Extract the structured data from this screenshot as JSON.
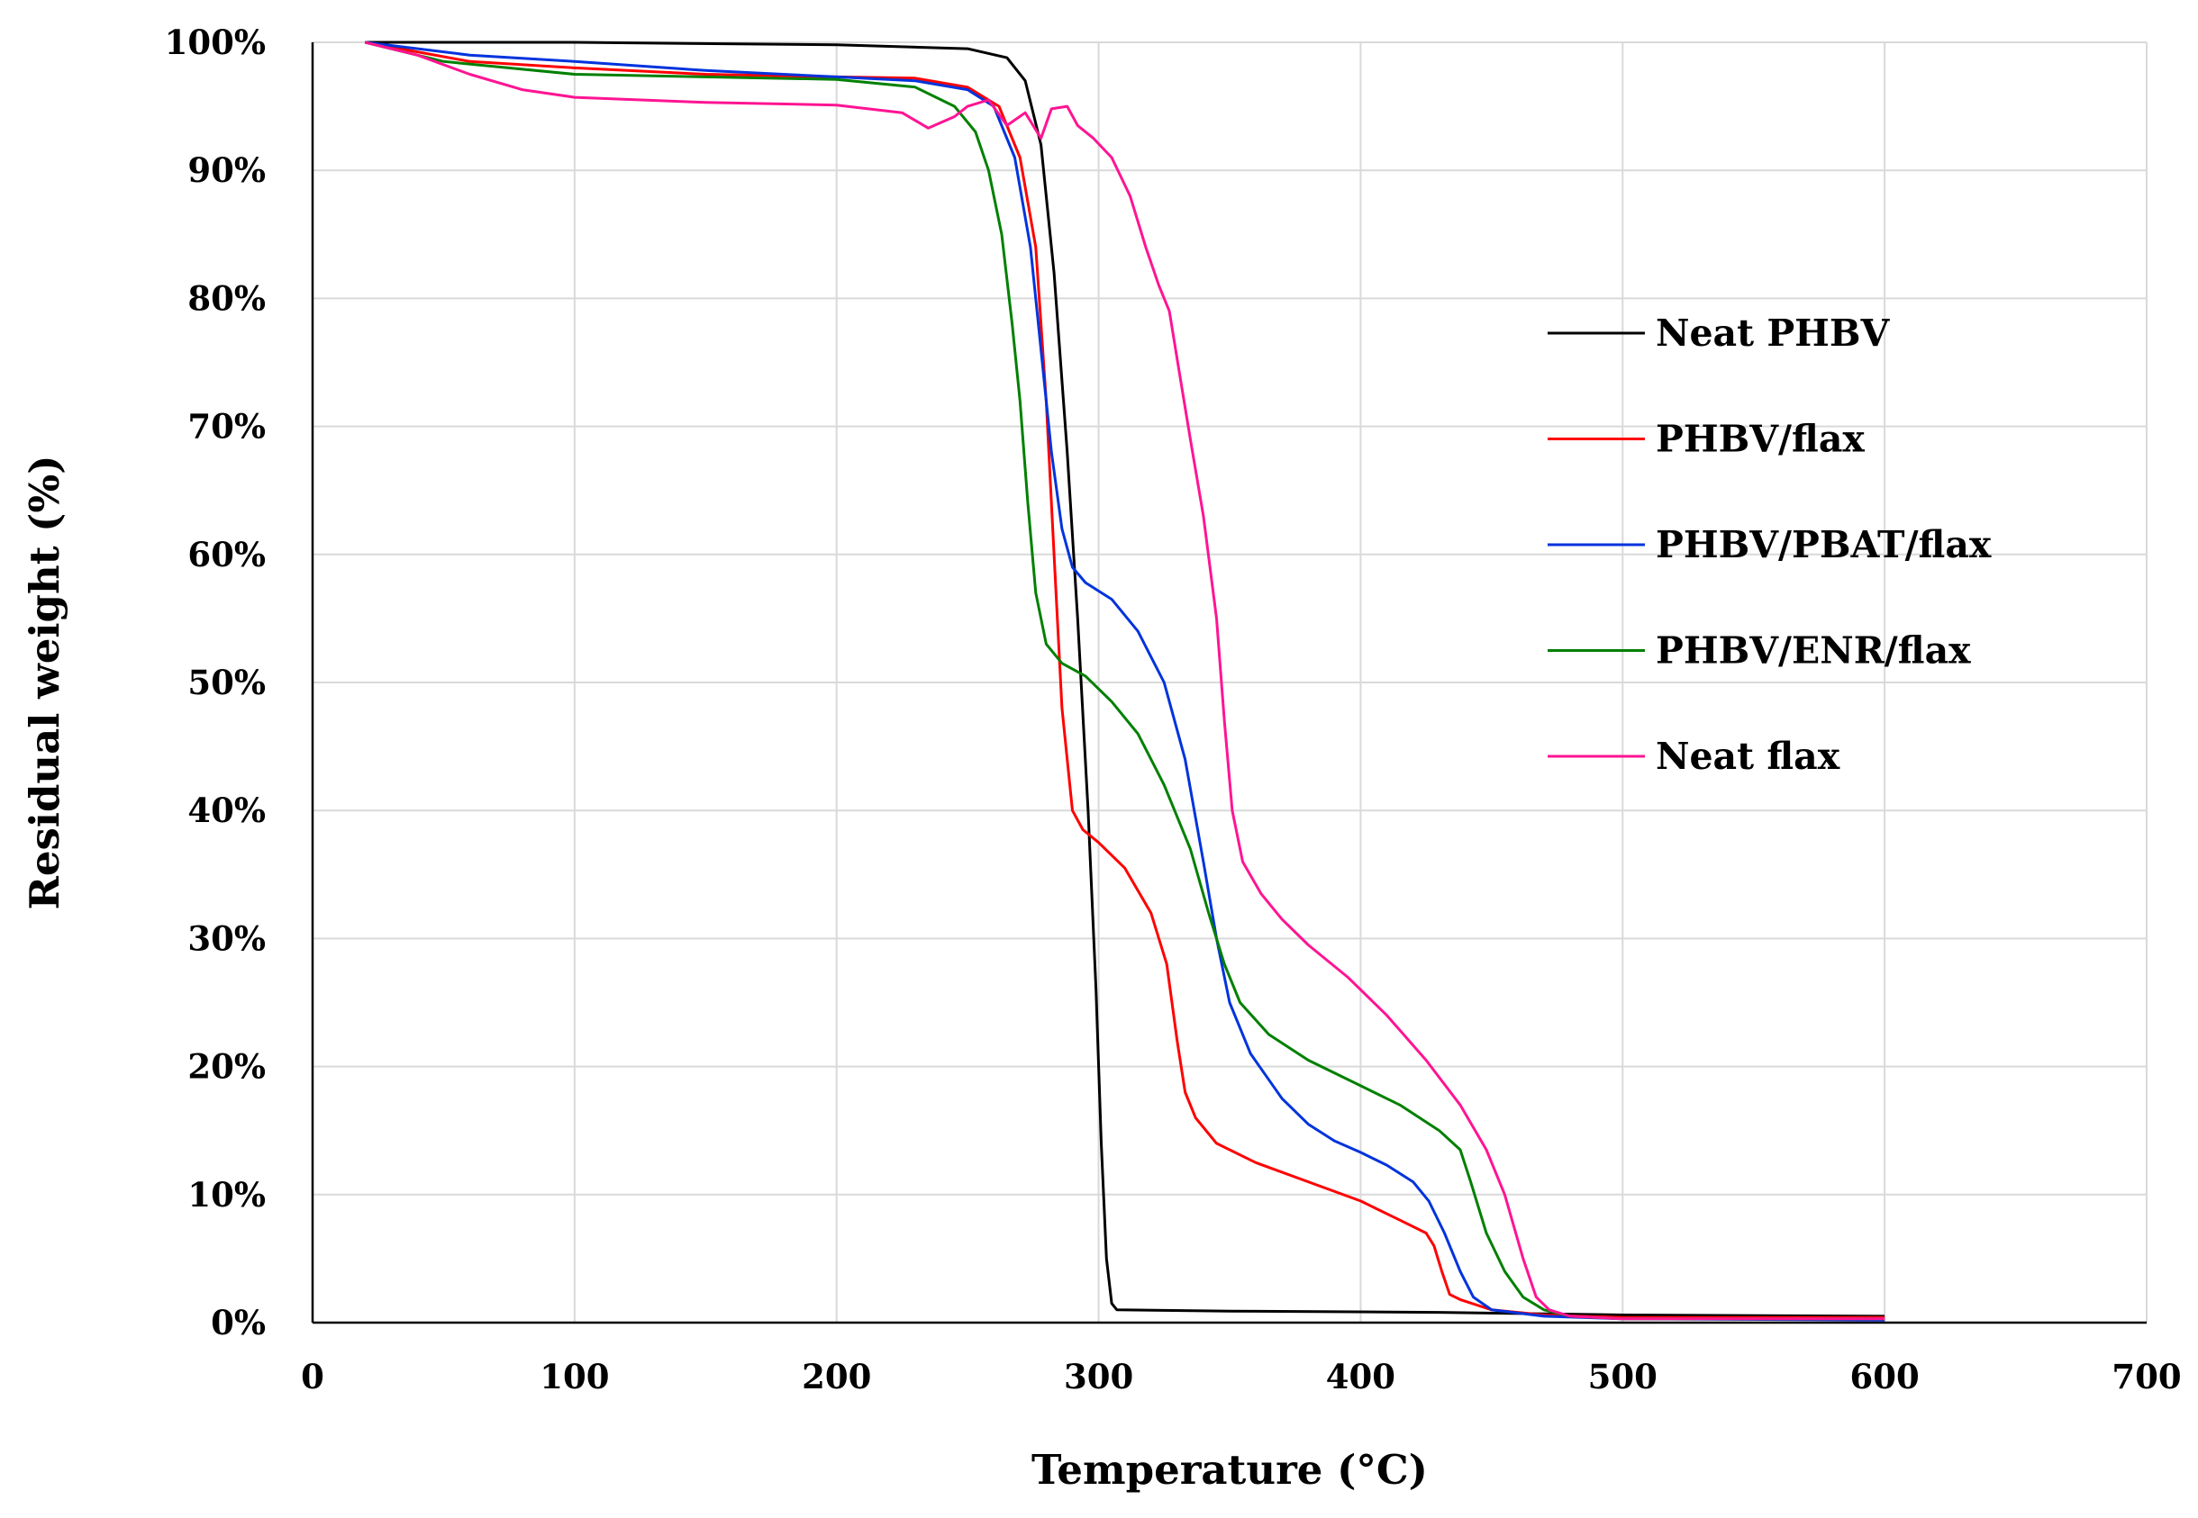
{
  "chart_data": {
    "type": "line",
    "title": "",
    "xlabel": "Temperature (°C)",
    "ylabel": "Residual weight (%)",
    "xlim": [
      0,
      700
    ],
    "ylim": [
      0,
      100
    ],
    "x_ticks": [
      0,
      100,
      200,
      300,
      400,
      500,
      600,
      700
    ],
    "x_tick_labels": [
      "0",
      "100",
      "200",
      "300",
      "400",
      "500",
      "600",
      "700"
    ],
    "y_ticks": [
      0,
      10,
      20,
      30,
      40,
      50,
      60,
      70,
      80,
      90,
      100
    ],
    "y_tick_labels": [
      "0%",
      "10%",
      "20%",
      "30%",
      "40%",
      "50%",
      "60%",
      "70%",
      "80%",
      "90%",
      "100%"
    ],
    "grid": true,
    "legend_position": "right",
    "series": [
      {
        "name": "Neat PHBV",
        "color": "#000000",
        "points": [
          [
            20,
            100
          ],
          [
            100,
            100
          ],
          [
            200,
            99.8
          ],
          [
            250,
            99.5
          ],
          [
            265,
            98.8
          ],
          [
            272,
            97
          ],
          [
            278,
            92
          ],
          [
            283,
            82
          ],
          [
            288,
            68
          ],
          [
            292,
            55
          ],
          [
            296,
            40
          ],
          [
            299,
            26
          ],
          [
            301,
            14
          ],
          [
            303,
            5
          ],
          [
            305,
            1.5
          ],
          [
            307,
            1
          ],
          [
            350,
            0.9
          ],
          [
            430,
            0.8
          ],
          [
            500,
            0.6
          ],
          [
            600,
            0.5
          ]
        ]
      },
      {
        "name": "PHBV/flax",
        "color": "#ff0000",
        "points": [
          [
            20,
            100
          ],
          [
            60,
            98.5
          ],
          [
            100,
            98
          ],
          [
            150,
            97.5
          ],
          [
            200,
            97.3
          ],
          [
            230,
            97.2
          ],
          [
            250,
            96.5
          ],
          [
            262,
            95
          ],
          [
            270,
            91
          ],
          [
            276,
            84
          ],
          [
            280,
            72
          ],
          [
            283,
            60
          ],
          [
            286,
            48
          ],
          [
            290,
            40
          ],
          [
            294,
            38.5
          ],
          [
            300,
            37.5
          ],
          [
            310,
            35.5
          ],
          [
            320,
            32
          ],
          [
            326,
            28
          ],
          [
            330,
            22
          ],
          [
            333,
            18
          ],
          [
            337,
            16
          ],
          [
            345,
            14
          ],
          [
            360,
            12.5
          ],
          [
            380,
            11
          ],
          [
            400,
            9.5
          ],
          [
            415,
            8
          ],
          [
            425,
            7
          ],
          [
            428,
            6
          ],
          [
            431,
            4
          ],
          [
            434,
            2.2
          ],
          [
            438,
            1.8
          ],
          [
            450,
            1
          ],
          [
            470,
            0.6
          ],
          [
            500,
            0.4
          ],
          [
            600,
            0.4
          ]
        ]
      },
      {
        "name": "PHBV/PBAT/flax",
        "color": "#0033dd",
        "points": [
          [
            20,
            100
          ],
          [
            60,
            99
          ],
          [
            100,
            98.5
          ],
          [
            150,
            97.8
          ],
          [
            200,
            97.3
          ],
          [
            230,
            97
          ],
          [
            250,
            96.3
          ],
          [
            260,
            95
          ],
          [
            268,
            91
          ],
          [
            274,
            84
          ],
          [
            278,
            76
          ],
          [
            282,
            68
          ],
          [
            286,
            62
          ],
          [
            290,
            59
          ],
          [
            295,
            57.8
          ],
          [
            305,
            56.5
          ],
          [
            315,
            54
          ],
          [
            325,
            50
          ],
          [
            333,
            44
          ],
          [
            340,
            36
          ],
          [
            345,
            30
          ],
          [
            350,
            25
          ],
          [
            358,
            21
          ],
          [
            370,
            17.5
          ],
          [
            380,
            15.5
          ],
          [
            390,
            14.2
          ],
          [
            400,
            13.3
          ],
          [
            410,
            12.3
          ],
          [
            420,
            11
          ],
          [
            426,
            9.5
          ],
          [
            432,
            7
          ],
          [
            438,
            4
          ],
          [
            443,
            2
          ],
          [
            450,
            1
          ],
          [
            470,
            0.5
          ],
          [
            500,
            0.3
          ],
          [
            600,
            0.2
          ]
        ]
      },
      {
        "name": "PHBV/ENR/flax",
        "color": "#008000",
        "points": [
          [
            20,
            100
          ],
          [
            50,
            98.5
          ],
          [
            100,
            97.5
          ],
          [
            150,
            97.3
          ],
          [
            200,
            97.1
          ],
          [
            230,
            96.5
          ],
          [
            245,
            95
          ],
          [
            253,
            93
          ],
          [
            258,
            90
          ],
          [
            263,
            85
          ],
          [
            267,
            78
          ],
          [
            270,
            72
          ],
          [
            273,
            64
          ],
          [
            276,
            57
          ],
          [
            280,
            53
          ],
          [
            286,
            51.5
          ],
          [
            295,
            50.5
          ],
          [
            305,
            48.5
          ],
          [
            315,
            46
          ],
          [
            325,
            42
          ],
          [
            335,
            37
          ],
          [
            342,
            32
          ],
          [
            348,
            28
          ],
          [
            354,
            25
          ],
          [
            365,
            22.5
          ],
          [
            380,
            20.5
          ],
          [
            400,
            18.5
          ],
          [
            415,
            17
          ],
          [
            430,
            15
          ],
          [
            438,
            13.5
          ],
          [
            442,
            11
          ],
          [
            448,
            7
          ],
          [
            455,
            4
          ],
          [
            462,
            2
          ],
          [
            470,
            1
          ],
          [
            480,
            0.5
          ],
          [
            500,
            0.3
          ],
          [
            600,
            0.3
          ]
        ]
      },
      {
        "name": "Neat flax",
        "color": "#ff1493",
        "points": [
          [
            20,
            100
          ],
          [
            40,
            99
          ],
          [
            60,
            97.5
          ],
          [
            80,
            96.3
          ],
          [
            100,
            95.7
          ],
          [
            150,
            95.3
          ],
          [
            200,
            95.1
          ],
          [
            225,
            94.5
          ],
          [
            235,
            93.3
          ],
          [
            245,
            94.2
          ],
          [
            250,
            95
          ],
          [
            258,
            95.5
          ],
          [
            265,
            93.5
          ],
          [
            272,
            94.5
          ],
          [
            278,
            92.5
          ],
          [
            282,
            94.8
          ],
          [
            288,
            95
          ],
          [
            292,
            93.5
          ],
          [
            298,
            92.5
          ],
          [
            305,
            91
          ],
          [
            312,
            88
          ],
          [
            318,
            84
          ],
          [
            323,
            81
          ],
          [
            327,
            79
          ],
          [
            331,
            74
          ],
          [
            335,
            69
          ],
          [
            340,
            63
          ],
          [
            345,
            55
          ],
          [
            348,
            47
          ],
          [
            351,
            40
          ],
          [
            355,
            36
          ],
          [
            362,
            33.5
          ],
          [
            370,
            31.5
          ],
          [
            380,
            29.5
          ],
          [
            395,
            27
          ],
          [
            410,
            24
          ],
          [
            425,
            20.5
          ],
          [
            438,
            17
          ],
          [
            448,
            13.5
          ],
          [
            455,
            10
          ],
          [
            462,
            5
          ],
          [
            467,
            2
          ],
          [
            472,
            1
          ],
          [
            480,
            0.5
          ],
          [
            500,
            0.3
          ],
          [
            600,
            0.3
          ]
        ]
      }
    ]
  }
}
